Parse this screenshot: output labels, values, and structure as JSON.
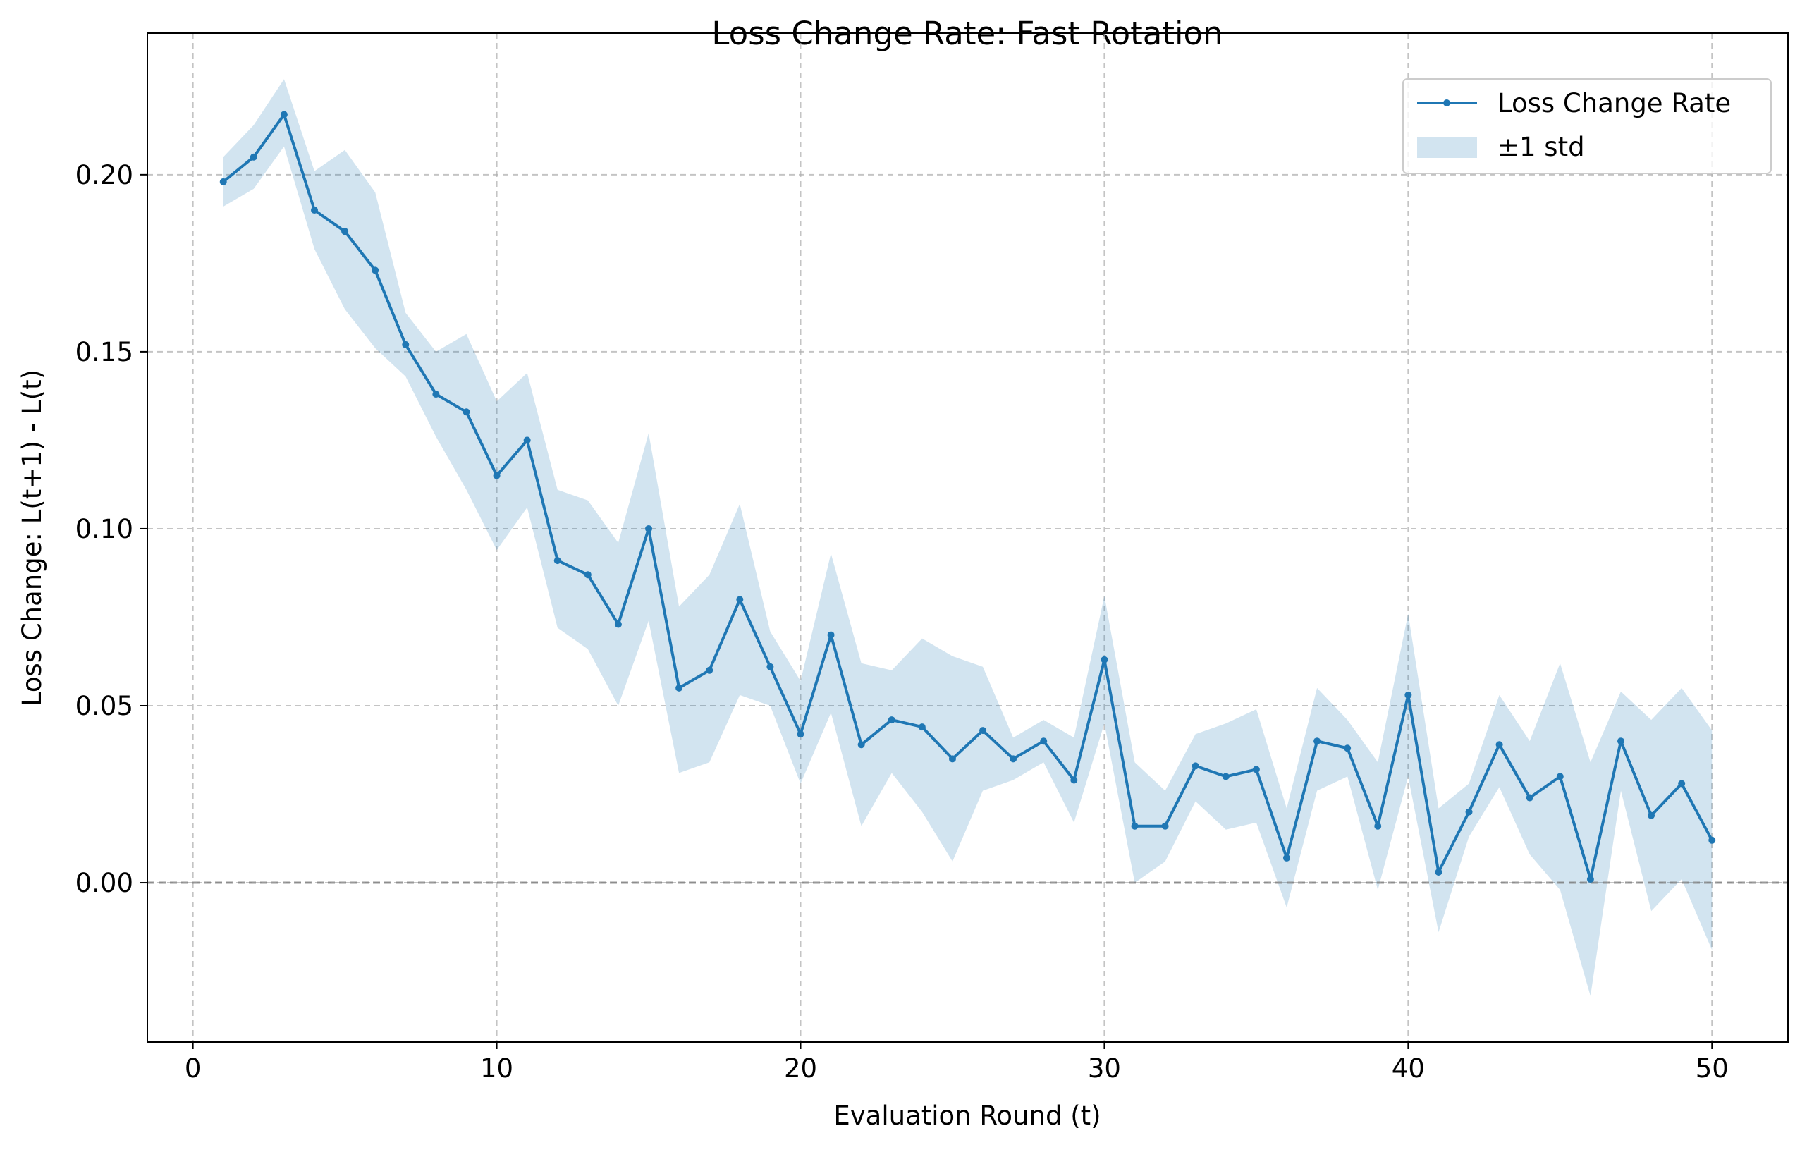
{
  "chart_data": {
    "type": "line",
    "title": "Loss Change Rate: Fast Rotation",
    "xlabel": "Evaluation Round (t)",
    "ylabel": "Loss Change: L(t+1) - L(t)",
    "xlim": [
      -1.5,
      52.5
    ],
    "ylim": [
      -0.045,
      0.24
    ],
    "xticks": [
      0,
      10,
      20,
      30,
      40,
      50
    ],
    "xtick_labels": [
      "0",
      "10",
      "20",
      "30",
      "40",
      "50"
    ],
    "yticks": [
      0.0,
      0.05,
      0.1,
      0.15,
      0.2
    ],
    "ytick_labels": [
      "0.00",
      "0.05",
      "0.10",
      "0.15",
      "0.20"
    ],
    "grid": true,
    "reference_line_y": 0,
    "legend_position": "top-right",
    "colors": {
      "line": "#1f77b4",
      "band": "#1f77b4",
      "grid": "#b0b0b0",
      "zero_line": "#808080"
    },
    "series": [
      {
        "name": "Loss Change Rate",
        "x": [
          1,
          2,
          3,
          4,
          5,
          6,
          7,
          8,
          9,
          10,
          11,
          12,
          13,
          14,
          15,
          16,
          17,
          18,
          19,
          20,
          21,
          22,
          23,
          24,
          25,
          26,
          27,
          28,
          29,
          30,
          31,
          32,
          33,
          34,
          35,
          36,
          37,
          38,
          39,
          40,
          41,
          42,
          43,
          44,
          45,
          46,
          47,
          48,
          49,
          50
        ],
        "values": [
          0.198,
          0.205,
          0.217,
          0.19,
          0.184,
          0.173,
          0.152,
          0.138,
          0.133,
          0.115,
          0.125,
          0.091,
          0.087,
          0.073,
          0.1,
          0.055,
          0.06,
          0.08,
          0.061,
          0.042,
          0.07,
          0.039,
          0.046,
          0.044,
          0.035,
          0.043,
          0.035,
          0.04,
          0.029,
          0.063,
          0.016,
          0.016,
          0.033,
          0.03,
          0.032,
          0.007,
          0.04,
          0.038,
          0.016,
          0.053,
          0.003,
          0.02,
          0.039,
          0.024,
          0.03,
          0.001,
          0.04,
          0.019,
          0.028,
          0.012
        ]
      },
      {
        "name": "±1 std",
        "type": "band",
        "x": [
          1,
          2,
          3,
          4,
          5,
          6,
          7,
          8,
          9,
          10,
          11,
          12,
          13,
          14,
          15,
          16,
          17,
          18,
          19,
          20,
          21,
          22,
          23,
          24,
          25,
          26,
          27,
          28,
          29,
          30,
          31,
          32,
          33,
          34,
          35,
          36,
          37,
          38,
          39,
          40,
          41,
          42,
          43,
          44,
          45,
          46,
          47,
          48,
          49,
          50
        ],
        "upper": [
          0.205,
          0.214,
          0.227,
          0.201,
          0.207,
          0.195,
          0.161,
          0.15,
          0.155,
          0.136,
          0.144,
          0.111,
          0.108,
          0.096,
          0.127,
          0.078,
          0.087,
          0.107,
          0.071,
          0.057,
          0.093,
          0.062,
          0.06,
          0.069,
          0.064,
          0.061,
          0.041,
          0.046,
          0.041,
          0.081,
          0.034,
          0.026,
          0.042,
          0.045,
          0.049,
          0.021,
          0.055,
          0.046,
          0.034,
          0.076,
          0.021,
          0.028,
          0.053,
          0.04,
          0.062,
          0.034,
          0.054,
          0.046,
          0.055,
          0.043
        ],
        "lower": [
          0.191,
          0.196,
          0.208,
          0.179,
          0.162,
          0.151,
          0.143,
          0.126,
          0.111,
          0.094,
          0.106,
          0.072,
          0.066,
          0.05,
          0.074,
          0.031,
          0.034,
          0.053,
          0.05,
          0.028,
          0.048,
          0.016,
          0.031,
          0.02,
          0.006,
          0.026,
          0.029,
          0.034,
          0.017,
          0.045,
          0.0,
          0.006,
          0.023,
          0.015,
          0.017,
          -0.007,
          0.026,
          0.03,
          -0.002,
          0.03,
          -0.014,
          0.013,
          0.027,
          0.008,
          -0.002,
          -0.032,
          0.026,
          -0.008,
          0.001,
          -0.019
        ]
      }
    ]
  }
}
